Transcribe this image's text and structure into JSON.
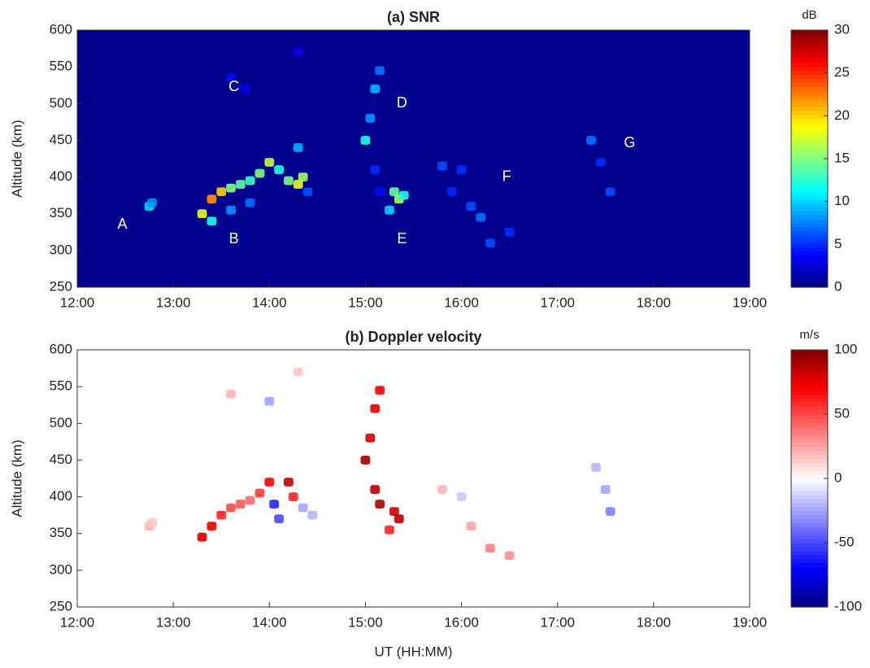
{
  "chart_data": [
    {
      "type": "heatmap",
      "title": "(a) SNR",
      "y_label": "Altitude (km)",
      "background": "#00008f",
      "xlim": [
        12,
        19
      ],
      "xticks": [
        {
          "value": 12,
          "label": "12:00"
        },
        {
          "value": 13,
          "label": "13:00"
        },
        {
          "value": 14,
          "label": "14:00"
        },
        {
          "value": 15,
          "label": "15:00"
        },
        {
          "value": 16,
          "label": "16:00"
        },
        {
          "value": 17,
          "label": "17:00"
        },
        {
          "value": 18,
          "label": "18:00"
        },
        {
          "value": 19,
          "label": "19:00"
        }
      ],
      "ylim": [
        250,
        600
      ],
      "yticks": [
        250,
        300,
        350,
        400,
        450,
        500,
        550,
        600
      ],
      "colorbar": {
        "label": "dB",
        "colormap": "jet",
        "lim": [
          0,
          30
        ],
        "ticks": [
          0,
          5,
          10,
          15,
          20,
          25,
          30
        ]
      },
      "x": [
        12.75,
        12.78,
        13.3,
        13.4,
        13.5,
        13.6,
        13.7,
        13.8,
        13.9,
        14.0,
        14.1,
        14.2,
        14.3,
        14.35,
        14.3,
        13.4,
        13.6,
        13.8,
        14.4,
        13.6,
        13.75,
        14.3,
        15.0,
        15.05,
        15.1,
        15.15,
        15.1,
        15.15,
        15.3,
        15.35,
        15.25,
        15.4,
        15.8,
        16.0,
        15.9,
        16.1,
        16.2,
        16.3,
        16.5,
        17.35,
        17.45,
        17.55
      ],
      "y": [
        360,
        365,
        350,
        370,
        380,
        385,
        390,
        395,
        405,
        420,
        410,
        395,
        390,
        400,
        440,
        340,
        355,
        365,
        380,
        535,
        520,
        570,
        450,
        480,
        520,
        545,
        410,
        380,
        380,
        370,
        355,
        375,
        415,
        410,
        380,
        360,
        345,
        310,
        325,
        450,
        420,
        380
      ],
      "values": [
        10,
        8,
        18,
        22,
        20,
        15,
        14,
        13,
        15,
        17,
        12,
        15,
        18,
        16,
        9,
        12,
        8,
        7,
        6,
        4,
        3,
        3,
        12,
        8,
        9,
        7,
        5,
        4,
        14,
        16,
        10,
        12,
        6,
        5,
        5,
        6,
        7,
        6,
        5,
        7,
        5,
        6
      ],
      "annotations": [
        {
          "text": "A",
          "x": 12.47,
          "y": 335
        },
        {
          "text": "B",
          "x": 13.63,
          "y": 315
        },
        {
          "text": "C",
          "x": 13.63,
          "y": 522
        },
        {
          "text": "D",
          "x": 15.38,
          "y": 500
        },
        {
          "text": "E",
          "x": 15.38,
          "y": 315
        },
        {
          "text": "F",
          "x": 16.47,
          "y": 400
        },
        {
          "text": "G",
          "x": 17.75,
          "y": 446
        }
      ]
    },
    {
      "type": "heatmap",
      "title": "(b) Doppler velocity",
      "y_label": "Altitude (km)",
      "x_label": "UT (HH:MM)",
      "background": "#ffffff",
      "xlim": [
        12,
        19
      ],
      "xticks": [
        {
          "value": 12,
          "label": "12:00"
        },
        {
          "value": 13,
          "label": "13:00"
        },
        {
          "value": 14,
          "label": "14:00"
        },
        {
          "value": 15,
          "label": "15:00"
        },
        {
          "value": 16,
          "label": "16:00"
        },
        {
          "value": 17,
          "label": "17:00"
        },
        {
          "value": 18,
          "label": "18:00"
        },
        {
          "value": 19,
          "label": "19:00"
        }
      ],
      "ylim": [
        250,
        600
      ],
      "yticks": [
        250,
        300,
        350,
        400,
        450,
        500,
        550,
        600
      ],
      "colorbar": {
        "label": "m/s",
        "colormap": "bwr",
        "lim": [
          -100,
          100
        ],
        "ticks": [
          -100,
          -50,
          0,
          50,
          100
        ]
      },
      "x": [
        12.75,
        12.78,
        13.3,
        13.4,
        13.5,
        13.6,
        13.7,
        13.8,
        13.9,
        14.0,
        14.05,
        14.1,
        14.2,
        14.25,
        14.35,
        14.45,
        13.6,
        14.0,
        14.3,
        15.0,
        15.05,
        15.1,
        15.15,
        15.1,
        15.15,
        15.3,
        15.35,
        15.25,
        15.8,
        16.0,
        16.1,
        16.3,
        16.5,
        17.4,
        17.5,
        17.55
      ],
      "y": [
        360,
        365,
        345,
        360,
        375,
        385,
        390,
        395,
        405,
        420,
        390,
        370,
        420,
        400,
        385,
        375,
        540,
        530,
        570,
        450,
        480,
        520,
        545,
        410,
        390,
        380,
        370,
        355,
        410,
        400,
        360,
        330,
        320,
        440,
        410,
        380
      ],
      "values": [
        20,
        15,
        80,
        75,
        60,
        50,
        45,
        40,
        55,
        70,
        -60,
        -50,
        85,
        60,
        -25,
        -20,
        20,
        -25,
        15,
        90,
        80,
        75,
        70,
        85,
        90,
        80,
        85,
        60,
        20,
        -15,
        25,
        35,
        30,
        -20,
        -25,
        -35
      ]
    }
  ]
}
